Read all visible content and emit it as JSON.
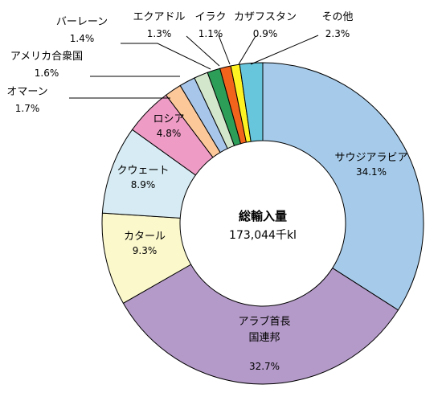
{
  "chart_data": {
    "type": "pie",
    "center_label": {
      "title": "総輸入量",
      "total": "173,044千kl"
    },
    "slices": [
      {
        "name": "サウジアラビア",
        "value": 34.1,
        "value_label": "34.1%",
        "color": "#a6cbea"
      },
      {
        "name": "アラブ首長国連邦",
        "value": 32.7,
        "value_label": "32.7%",
        "color": "#b49ac8"
      },
      {
        "name": "カタール",
        "value": 9.3,
        "value_label": "9.3%",
        "color": "#fbf8cc"
      },
      {
        "name": "クウェート",
        "value": 8.9,
        "value_label": "8.9%",
        "color": "#d6ebf3"
      },
      {
        "name": "ロシア",
        "value": 4.8,
        "value_label": "4.8%",
        "color": "#ee9cc5"
      },
      {
        "name": "オマーン",
        "value": 1.7,
        "value_label": "1.7%",
        "color": "#fcc89a"
      },
      {
        "name": "アメリカ合衆国",
        "value": 1.6,
        "value_label": "1.6%",
        "color": "#a7c6ea"
      },
      {
        "name": "バーレーン",
        "value": 1.4,
        "value_label": "1.4%",
        "color": "#d3e7cc"
      },
      {
        "name": "エクアドル",
        "value": 1.3,
        "value_label": "1.3%",
        "color": "#2d9e58"
      },
      {
        "name": "イラク",
        "value": 1.1,
        "value_label": "1.1%",
        "color": "#f2631c"
      },
      {
        "name": "カザフスタン",
        "value": 0.9,
        "value_label": "0.9%",
        "color": "#fff222"
      },
      {
        "name": "その他",
        "value": 2.3,
        "value_label": "2.3%",
        "color": "#68c6dc"
      }
    ]
  }
}
